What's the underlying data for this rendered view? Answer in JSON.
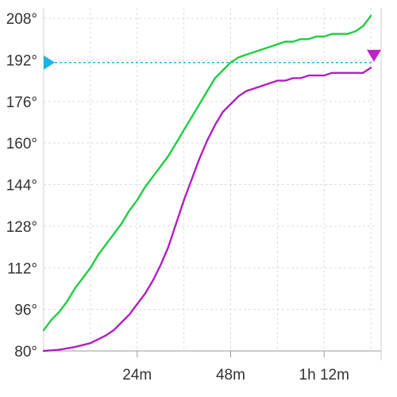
{
  "chart_data": {
    "type": "line",
    "title": "",
    "xlabel": "",
    "ylabel": "",
    "x_unit": "minutes",
    "y_unit": "degrees",
    "xlim": [
      0,
      85
    ],
    "ylim": [
      80,
      212
    ],
    "y_ticks": [
      {
        "value": 80,
        "label": "80°"
      },
      {
        "value": 96,
        "label": "96°"
      },
      {
        "value": 112,
        "label": "112°"
      },
      {
        "value": 128,
        "label": "128°"
      },
      {
        "value": 144,
        "label": "144°"
      },
      {
        "value": 160,
        "label": "160°"
      },
      {
        "value": 176,
        "label": "176°"
      },
      {
        "value": 192,
        "label": "192°"
      },
      {
        "value": 208,
        "label": "208°"
      }
    ],
    "x_ticks": [
      {
        "value": 24,
        "label": "24m"
      },
      {
        "value": 48,
        "label": "48m"
      },
      {
        "value": 72,
        "label": "1h 12m"
      }
    ],
    "grid": true,
    "target_line": {
      "value": 191,
      "color": "#19b4e6",
      "end_marker_color": "#c020c8"
    },
    "series": [
      {
        "color": "#22cc44",
        "x": [
          0,
          2,
          4,
          6,
          8,
          10,
          12,
          14,
          16,
          18,
          20,
          22,
          24,
          26,
          28,
          30,
          32,
          34,
          36,
          38,
          40,
          42,
          44,
          46,
          48,
          50,
          52,
          54,
          56,
          58,
          60,
          62,
          64,
          66,
          68,
          70,
          72,
          74,
          76,
          78,
          80,
          82,
          84
        ],
        "y": [
          88,
          92,
          95,
          99,
          104,
          108,
          112,
          117,
          121,
          125,
          129,
          134,
          138,
          143,
          147,
          151,
          155,
          160,
          165,
          170,
          175,
          180,
          185,
          188,
          191,
          193,
          194,
          195,
          196,
          197,
          198,
          199,
          199,
          200,
          200,
          201,
          201,
          202,
          202,
          202,
          203,
          205,
          209
        ]
      },
      {
        "color": "#b020c0",
        "x": [
          0,
          4,
          8,
          12,
          14,
          16,
          18,
          20,
          22,
          24,
          26,
          28,
          30,
          32,
          34,
          36,
          38,
          40,
          42,
          44,
          46,
          48,
          50,
          52,
          54,
          56,
          58,
          60,
          62,
          64,
          66,
          68,
          70,
          72,
          74,
          76,
          78,
          80,
          82,
          84
        ],
        "y": [
          80,
          80.5,
          81.5,
          83,
          84.5,
          86,
          88,
          91,
          94,
          98,
          102,
          107,
          113,
          120,
          129,
          138,
          146,
          154,
          161,
          167,
          172,
          175,
          178,
          180,
          181,
          182,
          183,
          184,
          184,
          185,
          185,
          186,
          186,
          186,
          187,
          187,
          187,
          187,
          187,
          189
        ]
      }
    ]
  }
}
